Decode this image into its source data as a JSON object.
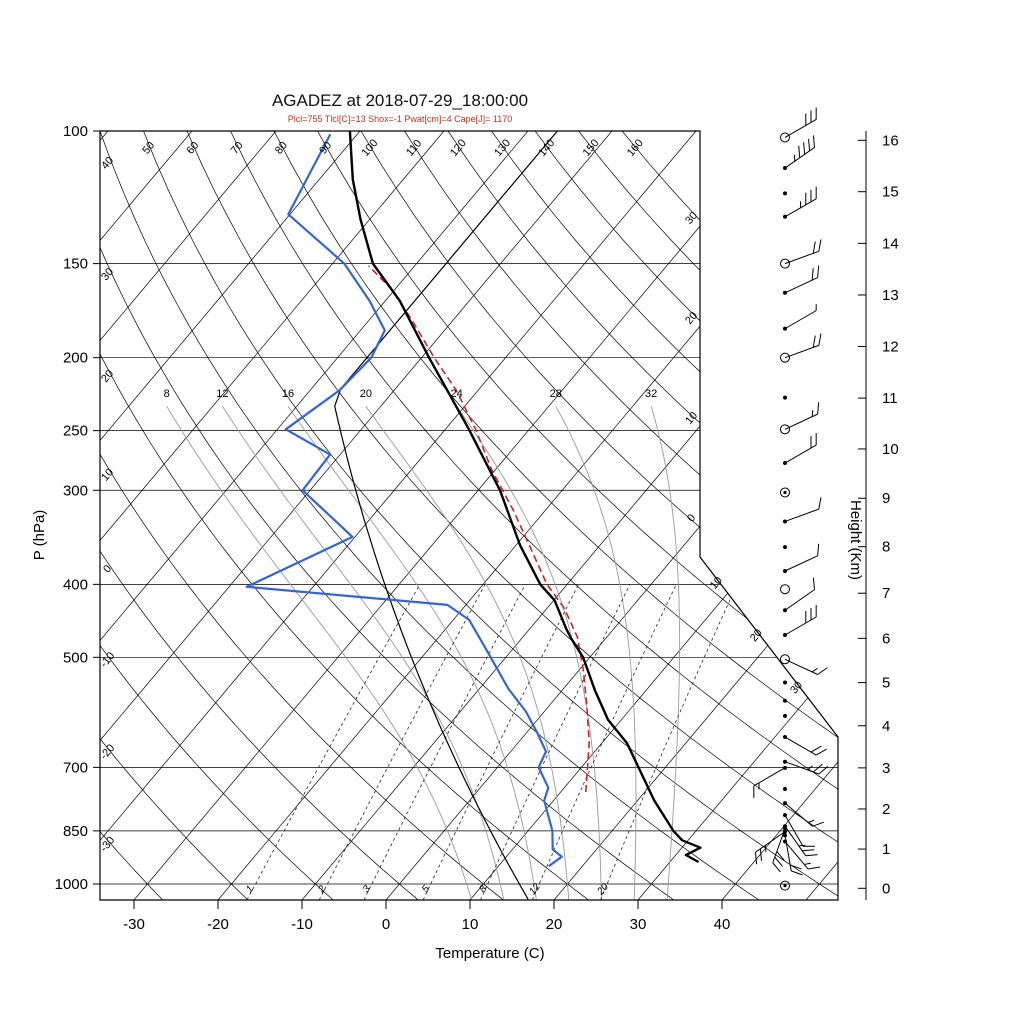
{
  "chart_data": {
    "type": "skewt",
    "title": "AGADEZ at 2018-07-29_18:00:00",
    "subtitle": "Plcl=755 Tlcl[C]=13 Shox=-1 Pwat[cm]=4 Cape[J]= 1170",
    "axis": {
      "pressure_label": "P (hPa)",
      "temperature_label": "Temperature (C)",
      "height_label": "Height (Km)",
      "pressure_ticks": [
        100,
        150,
        200,
        250,
        300,
        400,
        500,
        700,
        850,
        1000
      ],
      "temperature_ticks": [
        -30,
        -20,
        -10,
        0,
        10,
        20,
        30,
        40
      ],
      "height_ticks_km": [
        0,
        1,
        2,
        3,
        4,
        5,
        6,
        7,
        8,
        9,
        10,
        11,
        12,
        13,
        14,
        15,
        16
      ],
      "height_tick_pressures": [
        1013.2,
        898.7,
        795.0,
        701.1,
        616.4,
        540.2,
        471.8,
        411.0,
        356.5,
        307.4,
        264.4,
        226.3,
        193.3,
        165.1,
        141.0,
        120.4,
        102.9
      ]
    },
    "background": {
      "isotherm_range_c": [
        -110,
        50
      ],
      "isotherm_step_c": 10,
      "isotherm_edge_labels": [
        {
          "t": 0,
          "label": "0"
        },
        {
          "t": -10,
          "label": "10"
        },
        {
          "t": -20,
          "label": "20"
        },
        {
          "t": -30,
          "label": "30"
        }
      ],
      "isotherm_cut_labels": [
        {
          "t": 10,
          "label": "10"
        },
        {
          "t": 20,
          "label": "20"
        },
        {
          "t": 30,
          "label": "30"
        }
      ],
      "dry_adiabat_top_labels": [
        "50",
        "60",
        "70",
        "80",
        "90",
        "100",
        "110",
        "120",
        "130",
        "140",
        "150",
        "160"
      ],
      "dry_adiabat_left_labels": [
        "40",
        "30",
        "20",
        "10",
        "0",
        "-10",
        "-20",
        "-30"
      ],
      "dry_adiabats_c": [
        -30,
        -20,
        -10,
        0,
        10,
        20,
        30,
        40,
        50,
        60,
        70,
        80,
        90,
        100,
        110,
        120,
        130,
        140,
        150,
        160
      ],
      "moist_adiabats_c": [
        8,
        12,
        16,
        20,
        24,
        28,
        32
      ],
      "mixing_ratio_g_kg": [
        1,
        2,
        3,
        5,
        8,
        12,
        20
      ],
      "standard_atmosphere_line": true
    },
    "sounding": {
      "temperature": [
        [
          935,
          33.4
        ],
        [
          915,
          31.2
        ],
        [
          895,
          32.2
        ],
        [
          875,
          29.3
        ],
        [
          850,
          27.3
        ],
        [
          775,
          22.0
        ],
        [
          700,
          16.8
        ],
        [
          650,
          13.0
        ],
        [
          605,
          8.4
        ],
        [
          553,
          3.9
        ],
        [
          500,
          -0.8
        ],
        [
          472,
          -4.1
        ],
        [
          458,
          -5.7
        ],
        [
          420,
          -9.9
        ],
        [
          400,
          -13.2
        ],
        [
          355,
          -19.5
        ],
        [
          300,
          -27.4
        ],
        [
          249,
          -37.2
        ],
        [
          200,
          -49.1
        ],
        [
          168,
          -58.3
        ],
        [
          150,
          -65.2
        ],
        [
          131,
          -71.1
        ],
        [
          116,
          -76.0
        ],
        [
          100,
          -81.2
        ]
      ],
      "dewpoint": [
        [
          947,
          16.0
        ],
        [
          920,
          16.6
        ],
        [
          900,
          14.8
        ],
        [
          850,
          12.9
        ],
        [
          775,
          8.9
        ],
        [
          745,
          8.1
        ],
        [
          700,
          4.9
        ],
        [
          667,
          4.2
        ],
        [
          630,
          1.3
        ],
        [
          590,
          -2.2
        ],
        [
          550,
          -6.6
        ],
        [
          500,
          -11.8
        ],
        [
          446,
          -18.1
        ],
        [
          426,
          -22.2
        ],
        [
          403,
          -47.9
        ],
        [
          346,
          -40.3
        ],
        [
          300,
          -50.9
        ],
        [
          269,
          -51.2
        ],
        [
          249,
          -59.0
        ],
        [
          221,
          -56.5
        ],
        [
          200,
          -56.0
        ],
        [
          184,
          -57.1
        ],
        [
          168,
          -61.9
        ],
        [
          150,
          -68.6
        ],
        [
          129,
          -80.2
        ],
        [
          101,
          -83.2
        ]
      ],
      "parcel": [
        [
          755,
          13.0
        ],
        [
          650,
          8.5
        ],
        [
          580,
          4.5
        ],
        [
          520,
          0.5
        ],
        [
          470,
          -3.5
        ],
        [
          430,
          -8.0
        ],
        [
          400,
          -12.4
        ],
        [
          360,
          -17.7
        ],
        [
          319,
          -23.8
        ],
        [
          282,
          -30.4
        ],
        [
          249,
          -36.4
        ],
        [
          221,
          -42.6
        ],
        [
          200,
          -48.5
        ],
        [
          178,
          -55.0
        ],
        [
          162,
          -60.5
        ],
        [
          151,
          -65.5
        ]
      ]
    },
    "wind_barbs": [
      {
        "p": 102,
        "spd": 30,
        "dir": 60,
        "marker": "circle"
      },
      {
        "p": 112,
        "spd": 45,
        "dir": 55,
        "marker": "dot"
      },
      {
        "p": 121,
        "spd": 0,
        "dir": 0,
        "marker": "dot"
      },
      {
        "p": 130,
        "spd": 35,
        "dir": 60,
        "marker": "dot"
      },
      {
        "p": 150,
        "spd": 20,
        "dir": 70,
        "marker": "circle"
      },
      {
        "p": 164,
        "spd": 20,
        "dir": 65,
        "marker": "dot"
      },
      {
        "p": 183,
        "spd": 5,
        "dir": 60,
        "marker": "dot"
      },
      {
        "p": 200,
        "spd": 20,
        "dir": 70,
        "marker": "circle"
      },
      {
        "p": 226,
        "spd": 0,
        "dir": 0,
        "marker": "dot"
      },
      {
        "p": 249,
        "spd": 15,
        "dir": 65,
        "marker": "circle"
      },
      {
        "p": 276,
        "spd": 20,
        "dir": 60,
        "marker": "dot"
      },
      {
        "p": 302,
        "spd": 0,
        "dir": 0,
        "marker": "calm"
      },
      {
        "p": 330,
        "spd": 10,
        "dir": 70,
        "marker": "dot"
      },
      {
        "p": 357,
        "spd": 0,
        "dir": 0,
        "marker": "dot"
      },
      {
        "p": 384,
        "spd": 10,
        "dir": 65,
        "marker": "dot"
      },
      {
        "p": 406,
        "spd": 0,
        "dir": 0,
        "marker": "circle"
      },
      {
        "p": 433,
        "spd": 10,
        "dir": 55,
        "marker": "dot"
      },
      {
        "p": 467,
        "spd": 30,
        "dir": 60,
        "marker": "dot"
      },
      {
        "p": 503,
        "spd": 15,
        "dir": 115,
        "marker": "circle"
      },
      {
        "p": 540,
        "spd": 0,
        "dir": 0,
        "marker": "dot"
      },
      {
        "p": 571,
        "spd": 0,
        "dir": 0,
        "marker": "dot"
      },
      {
        "p": 598,
        "spd": 0,
        "dir": 0,
        "marker": "dot"
      },
      {
        "p": 638,
        "spd": 20,
        "dir": 120,
        "marker": "dot"
      },
      {
        "p": 688,
        "spd": 25,
        "dir": 110,
        "marker": "dot"
      },
      {
        "p": 701,
        "spd": 15,
        "dir": 240,
        "marker": "dot"
      },
      {
        "p": 748,
        "spd": 0,
        "dir": 0,
        "marker": "dot"
      },
      {
        "p": 781,
        "spd": 15,
        "dir": 130,
        "marker": "dot"
      },
      {
        "p": 810,
        "spd": 10,
        "dir": 150,
        "marker": "dot"
      },
      {
        "p": 838,
        "spd": 25,
        "dir": 145,
        "marker": "dot"
      },
      {
        "p": 845,
        "spd": 30,
        "dir": 200,
        "marker": "dot"
      },
      {
        "p": 852,
        "spd": 25,
        "dir": 235,
        "marker": "dot"
      },
      {
        "p": 862,
        "spd": 20,
        "dir": 170,
        "marker": "dot"
      },
      {
        "p": 878,
        "spd": 15,
        "dir": 140,
        "marker": "dot"
      },
      {
        "p": 1005,
        "spd": 0,
        "dir": 0,
        "marker": "calm"
      }
    ],
    "colors": {
      "grid": "#000000",
      "moist_adiabat": "#999999",
      "mixing_ratio": "#222222",
      "temperature": "#000000",
      "dewpoint": "#3565cf",
      "parcel": "#cc2222",
      "subtitle": "#b5371c"
    }
  }
}
